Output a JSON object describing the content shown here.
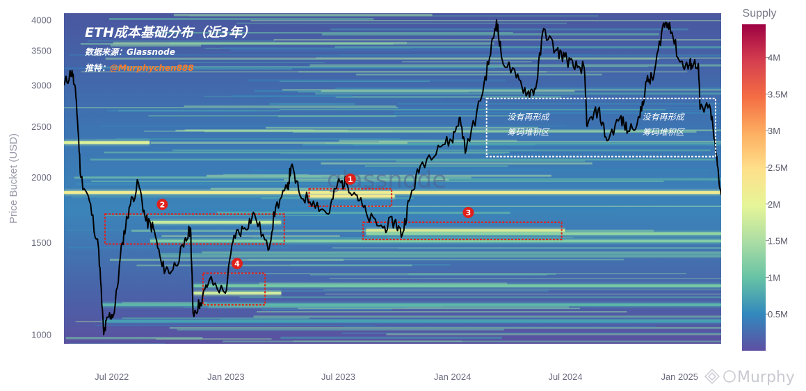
{
  "chart_data": {
    "type": "heatmap",
    "title": "ETH成本基础分布（近3年）",
    "subtitle_lines": [
      {
        "label": "数据来源：",
        "value": "Glassnode"
      },
      {
        "label": "推特：",
        "value": "@Murphychen888"
      }
    ],
    "watermark": "glassnode",
    "ylabel": "Price Bucket (USD)",
    "y_scale": "log",
    "ylim": [
      960,
      4120
    ],
    "y_ticks": [
      1000,
      1500,
      2000,
      2500,
      3000,
      3500,
      4000
    ],
    "y_tick_labels": [
      "1000",
      "1500",
      "2000",
      "2500",
      "3000",
      "3500",
      "4000"
    ],
    "x_range": [
      "2022-04-15",
      "2025-03-09"
    ],
    "x_ticks": [
      "2022-07-01",
      "2023-01-01",
      "2023-07-01",
      "2024-01-01",
      "2024-07-01",
      "2025-01-01"
    ],
    "x_tick_labels": [
      "Jul 2022",
      "Jan 2023",
      "Jul 2023",
      "Jan 2024",
      "Jul 2024",
      "Jan 2025"
    ],
    "colorbar": {
      "title": "Supply",
      "ticks": [
        500000,
        1000000,
        1500000,
        2000000,
        2500000,
        3000000,
        3500000,
        4000000
      ],
      "tick_labels": [
        "0.5M",
        "1M",
        "1.5M",
        "2M",
        "2.5M",
        "3M",
        "3.5M",
        "4M"
      ],
      "range": [
        0,
        4450000
      ],
      "colorscale": [
        "#5e4fa2",
        "#3288bd",
        "#66c2a5",
        "#abdda4",
        "#e6f598",
        "#fee08b",
        "#fdae61",
        "#f46d43",
        "#d53e4f",
        "#9e0142"
      ]
    },
    "supply_bands": [
      {
        "price": 1870,
        "start": "2022-04-15",
        "end": "2025-03-09",
        "supply": 2200000
      },
      {
        "price": 2330,
        "start": "2022-04-15",
        "end": "2022-08-31",
        "supply": 1900000
      },
      {
        "price": 1640,
        "start": "2022-09-01",
        "end": "2023-03-31",
        "supply": 1700000
      },
      {
        "price": 1510,
        "start": "2022-09-01",
        "end": "2025-03-09",
        "supply": 1200000
      },
      {
        "price": 1240,
        "start": "2022-11-10",
        "end": "2025-03-09",
        "supply": 1100000
      },
      {
        "price": 1200,
        "start": "2022-11-10",
        "end": "2023-03-31",
        "supply": 1800000
      },
      {
        "price": 1840,
        "start": "2023-05-15",
        "end": "2023-09-30",
        "supply": 2300000
      },
      {
        "price": 1580,
        "start": "2023-08-15",
        "end": "2024-06-30",
        "supply": 2100000
      },
      {
        "price": 1560,
        "start": "2023-08-15",
        "end": "2025-03-09",
        "supply": 1300000
      },
      {
        "price": 1140,
        "start": "2022-06-15",
        "end": "2025-03-09",
        "supply": 900000
      },
      {
        "price": 1060,
        "start": "2022-06-15",
        "end": "2025-03-09",
        "supply": 700000
      }
    ],
    "series": [
      {
        "type": "line",
        "x": [
          "2022-04-15",
          "2022-04-28",
          "2022-05-05",
          "2022-05-12",
          "2022-05-26",
          "2022-06-10",
          "2022-06-18",
          "2022-06-25",
          "2022-07-05",
          "2022-07-18",
          "2022-07-29",
          "2022-08-13",
          "2022-08-25",
          "2022-09-06",
          "2022-09-20",
          "2022-10-05",
          "2022-10-25",
          "2022-11-05",
          "2022-11-09",
          "2022-11-21",
          "2022-12-05",
          "2022-12-31",
          "2023-01-14",
          "2023-01-31",
          "2023-02-16",
          "2023-03-10",
          "2023-03-22",
          "2023-04-10",
          "2023-04-16",
          "2023-04-30",
          "2023-05-22",
          "2023-06-15",
          "2023-06-30",
          "2023-07-14",
          "2023-07-31",
          "2023-08-17",
          "2023-09-11",
          "2023-09-30",
          "2023-10-12",
          "2023-10-23",
          "2023-11-10",
          "2023-12-09",
          "2023-12-31",
          "2024-01-12",
          "2024-01-23",
          "2024-02-15",
          "2024-03-01",
          "2024-03-12",
          "2024-03-20",
          "2024-04-13",
          "2024-05-01",
          "2024-05-14",
          "2024-05-27",
          "2024-06-15",
          "2024-06-30",
          "2024-07-14",
          "2024-07-31",
          "2024-08-05",
          "2024-08-23",
          "2024-09-06",
          "2024-09-27",
          "2024-10-10",
          "2024-10-29",
          "2024-11-09",
          "2024-11-20",
          "2024-12-05",
          "2024-12-16",
          "2024-12-31",
          "2025-01-14",
          "2025-01-20",
          "2025-01-31",
          "2025-02-03",
          "2025-02-20",
          "2025-03-01",
          "2025-03-09"
        ],
        "y": [
          3000,
          3200,
          2800,
          2000,
          1800,
          1450,
          1000,
          1080,
          1100,
          1500,
          1750,
          1950,
          1650,
          1600,
          1350,
          1320,
          1470,
          1600,
          1100,
          1150,
          1270,
          1200,
          1550,
          1600,
          1700,
          1450,
          1750,
          1900,
          2100,
          1850,
          1800,
          1700,
          1950,
          1950,
          1850,
          1680,
          1600,
          1650,
          1550,
          1800,
          2100,
          2300,
          2350,
          2600,
          2250,
          2800,
          3400,
          4000,
          3400,
          3100,
          2900,
          2950,
          3850,
          3500,
          3400,
          3250,
          3250,
          2500,
          2700,
          2350,
          2600,
          2450,
          2600,
          3050,
          3100,
          3900,
          3950,
          3350,
          3250,
          3300,
          3300,
          2700,
          2700,
          2200,
          1850
        ]
      }
    ],
    "annotations": [
      {
        "number": "1",
        "region": {
          "x": [
            "2023-05-15",
            "2023-09-25"
          ],
          "y": [
            1760,
            1900
          ]
        }
      },
      {
        "number": "2",
        "region": {
          "x": [
            "2022-06-20",
            "2023-04-05"
          ],
          "y": [
            1490,
            1700
          ]
        }
      },
      {
        "number": "3",
        "region": {
          "x": [
            "2023-08-10",
            "2024-06-25"
          ],
          "y": [
            1520,
            1640
          ]
        }
      },
      {
        "number": "4",
        "region": {
          "x": [
            "2022-11-25",
            "2023-03-05"
          ],
          "y": [
            1140,
            1310
          ]
        }
      }
    ],
    "note_boxes": [
      {
        "lines": [
          "没有再形成",
          "筹码堆积区"
        ],
        "region": {
          "x": [
            "2024-02-25",
            "2025-02-28"
          ],
          "y": [
            2190,
            2830
          ]
        }
      }
    ],
    "source_logo": "Murphy"
  }
}
